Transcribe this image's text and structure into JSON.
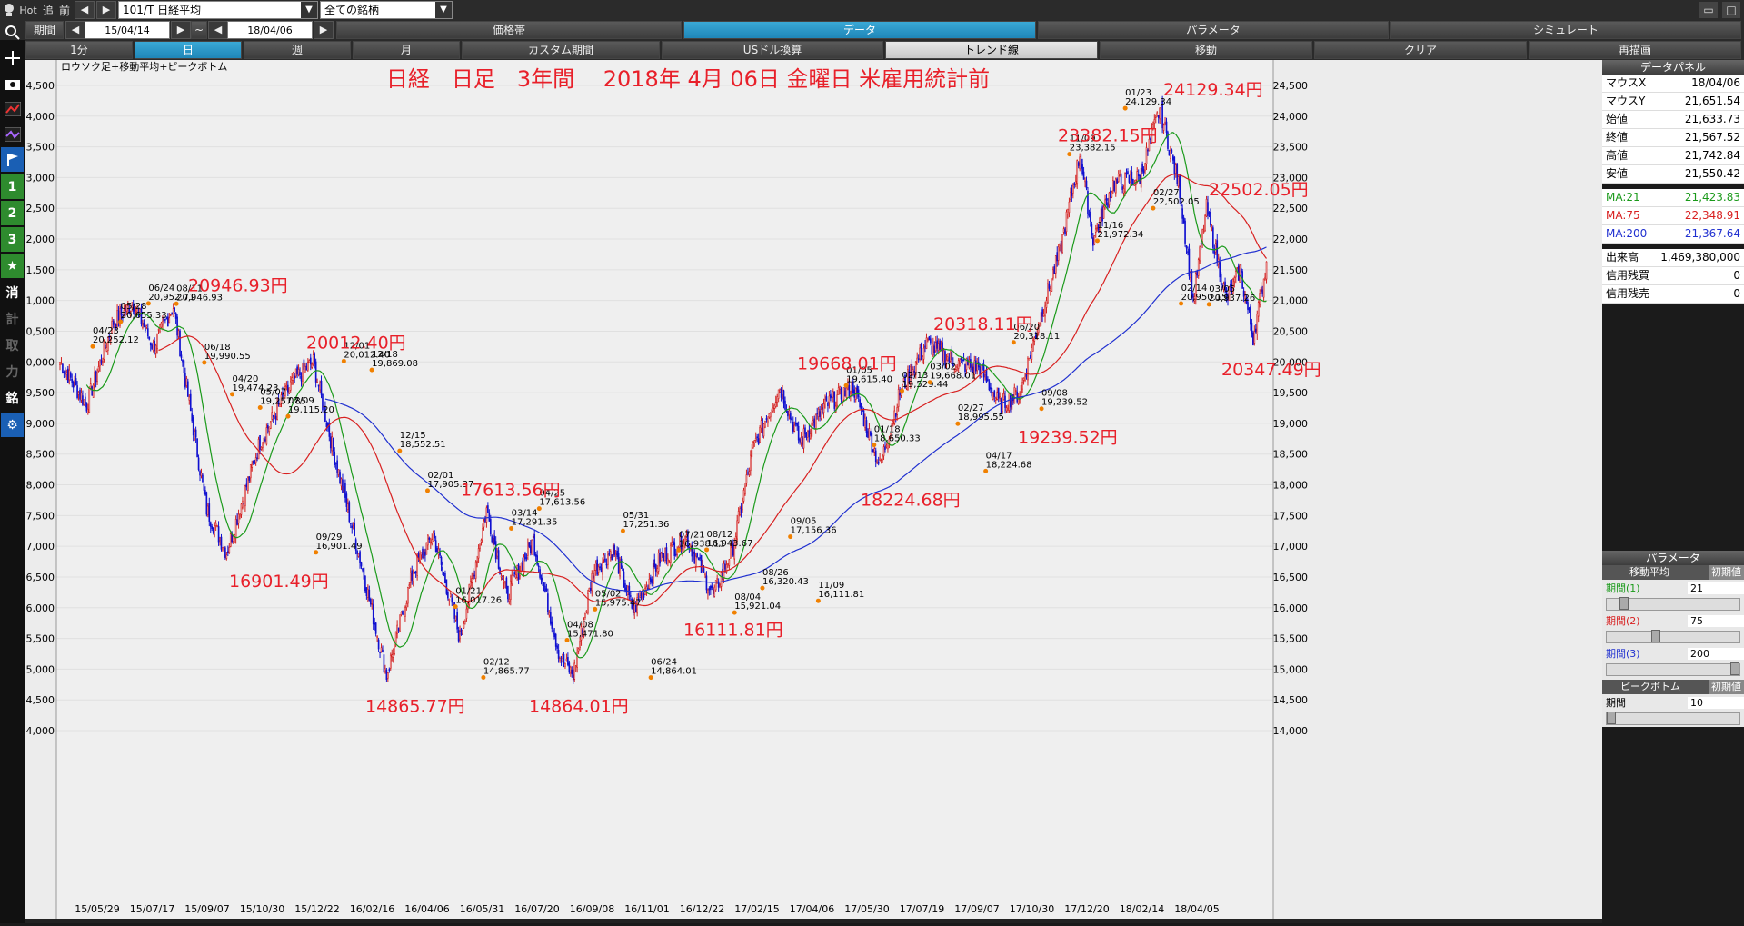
{
  "toolbar": {
    "hot_label": "Hot",
    "add_label": "追",
    "prev_label": "前",
    "symbol_value": "101/T 日経平均",
    "market_value": "全ての銘柄"
  },
  "period": {
    "label": "期間",
    "start": "15/04/14",
    "tilde": "~",
    "end": "18/04/06"
  },
  "tabs": [
    "価格帯",
    "データ",
    "パラメータ",
    "シミュレート"
  ],
  "interval_tabs": [
    "1分",
    "日",
    "週",
    "月",
    "カスタム期間",
    "USドル換算",
    "トレンド線",
    "移動",
    "クリア",
    "再描画"
  ],
  "sidebar_buttons": [
    "1",
    "2",
    "3",
    "消",
    "計",
    "取",
    "力",
    "銘"
  ],
  "chart_data": {
    "type": "candlestick",
    "title": "日経　日足　3年間　 2018年 4月 06日 金曜日 米雇用統計前",
    "indicator_label": "ロウソク足+移動平均+ピークボトム",
    "ylim": [
      14000,
      24500
    ],
    "yticks": [
      "24,500",
      "24,000",
      "23,500",
      "23,000",
      "22,500",
      "22,000",
      "21,500",
      "21,000",
      "20,500",
      "20,000",
      "19,500",
      "19,000",
      "18,500",
      "18,000",
      "17,500",
      "17,000",
      "16,500",
      "16,000",
      "15,500",
      "15,000",
      "14,500",
      "14,000"
    ],
    "xticks": [
      "15/05/29",
      "15/07/17",
      "15/09/07",
      "15/10/30",
      "15/12/22",
      "16/02/16",
      "16/04/06",
      "16/05/31",
      "16/07/20",
      "16/09/08",
      "16/11/01",
      "16/12/22",
      "17/02/15",
      "17/04/06",
      "17/05/30",
      "17/07/19",
      "17/09/07",
      "17/10/30",
      "17/12/20",
      "18/02/14",
      "18/04/05"
    ],
    "peaks": [
      {
        "date": "04/23",
        "value": "20,252.12"
      },
      {
        "date": "05/28",
        "value": "20,655.33"
      },
      {
        "date": "06/24",
        "value": "20,952.71"
      },
      {
        "date": "08/11",
        "value": "20,946.93"
      },
      {
        "date": "06/18",
        "value": "19,990.55"
      },
      {
        "date": "04/20",
        "value": "19,474.23"
      },
      {
        "date": "05/07",
        "value": "19,257.85"
      },
      {
        "date": "07/09",
        "value": "19,115.20"
      },
      {
        "date": "09/29",
        "value": "16,901.49"
      },
      {
        "date": "12/01",
        "value": "20,012.40"
      },
      {
        "date": "12/18",
        "value": "19,869.08"
      },
      {
        "date": "12/15",
        "value": "18,552.51"
      },
      {
        "date": "02/01",
        "value": "17,905.37"
      },
      {
        "date": "01/21",
        "value": "16,017.26"
      },
      {
        "date": "02/12",
        "value": "14,865.77"
      },
      {
        "date": "03/14",
        "value": "17,291.35"
      },
      {
        "date": "04/25",
        "value": "17,613.56"
      },
      {
        "date": "04/08",
        "value": "15,471.80"
      },
      {
        "date": "05/02",
        "value": "15,975.47"
      },
      {
        "date": "05/31",
        "value": "17,251.36"
      },
      {
        "date": "06/24",
        "value": "14,864.01"
      },
      {
        "date": "07/21",
        "value": "16,938.11"
      },
      {
        "date": "08/12",
        "value": "16,943.67"
      },
      {
        "date": "08/04",
        "value": "15,921.04"
      },
      {
        "date": "08/26",
        "value": "16,320.43"
      },
      {
        "date": "09/05",
        "value": "17,156.36"
      },
      {
        "date": "11/09",
        "value": "16,111.81"
      },
      {
        "date": "01/05",
        "value": "19,615.40"
      },
      {
        "date": "01/18",
        "value": "18,650.33"
      },
      {
        "date": "02/13",
        "value": "19,529.44"
      },
      {
        "date": "03/02",
        "value": "19,668.01"
      },
      {
        "date": "02/27",
        "value": "18,995.55"
      },
      {
        "date": "04/17",
        "value": "18,224.68"
      },
      {
        "date": "06/20",
        "value": "20,318.11"
      },
      {
        "date": "09/08",
        "value": "19,239.52"
      },
      {
        "date": "11/09",
        "value": "23,382.15"
      },
      {
        "date": "11/16",
        "value": "21,972.34"
      },
      {
        "date": "01/23",
        "value": "24,129.34"
      },
      {
        "date": "02/27",
        "value": "22,502.05"
      },
      {
        "date": "02/14",
        "value": "20,950.15"
      },
      {
        "date": "03/05",
        "value": "20,937.26"
      }
    ],
    "big_labels": [
      "20946.93円",
      "16901.49円",
      "20012.40円",
      "14865.77円",
      "17613.56円",
      "14864.01円",
      "16111.81円",
      "19668.01円",
      "18224.68円",
      "20318.11円",
      "19239.52円",
      "23382.15円",
      "24129.34円",
      "22502.05円",
      "20347.49円"
    ],
    "series_colors": {
      "up": "#d22020",
      "down": "#1010d0",
      "ma21": "#1a9a1a",
      "ma75": "#d82020",
      "ma200": "#2030d0"
    }
  },
  "data_panel": {
    "title": "データパネル",
    "rows": [
      {
        "label": "マウスX",
        "value": "18/04/06"
      },
      {
        "label": "マウスY",
        "value": "21,651.54"
      },
      {
        "label": "始値",
        "value": "21,633.73"
      },
      {
        "label": "終値",
        "value": "21,567.52"
      },
      {
        "label": "高値",
        "value": "21,742.84"
      },
      {
        "label": "安値",
        "value": "21,550.42"
      }
    ],
    "ma_rows": [
      {
        "label": "MA:21",
        "value": "21,423.83",
        "color": "#1a9a1a"
      },
      {
        "label": "MA:75",
        "value": "22,348.91",
        "color": "#d82020"
      },
      {
        "label": "MA:200",
        "value": "21,367.64",
        "color": "#2030d0"
      }
    ],
    "volume_rows": [
      {
        "label": "出来高",
        "value": "1,469,380,000"
      },
      {
        "label": "信用残買",
        "value": "0"
      },
      {
        "label": "信用残売",
        "value": "0"
      }
    ]
  },
  "param_panel": {
    "title": "パラメータ",
    "ma_header": "移動平均",
    "reset_label": "初期値",
    "periods": [
      {
        "label": "期間(1)",
        "value": "21",
        "color": "#1a9a1a",
        "level": 0.1
      },
      {
        "label": "期間(2)",
        "value": "75",
        "color": "#d82020",
        "level": 0.36
      },
      {
        "label": "期間(3)",
        "value": "200",
        "color": "#2030d0",
        "level": 1.0
      }
    ],
    "peak_header": "ピークボトム",
    "peak_period_label": "期間",
    "peak_period_value": "10",
    "peak_level": 0.0
  }
}
